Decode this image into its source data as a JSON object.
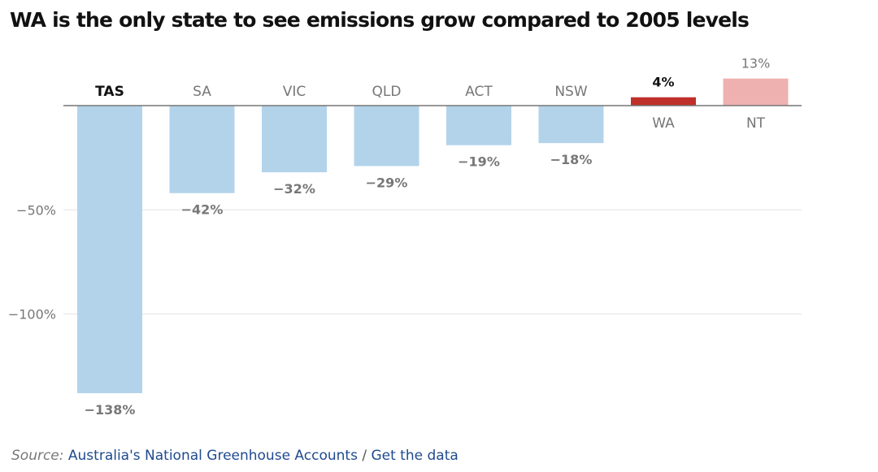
{
  "title": "WA is the only state to see emissions grow compared to 2005 levels",
  "source": {
    "label": "Source:",
    "name": "Australia's National Greenhouse Accounts",
    "separator": "/",
    "data_link": "Get the data"
  },
  "colors": {
    "decrease": "#b3d3eb",
    "wa": "#c0302b",
    "nt": "#eeb1b0",
    "gridline": "#e3e3e3",
    "baseline": "#777777",
    "value_label": "#777777",
    "highlight_label": "#111111",
    "source_link": "#1f4a8f"
  },
  "chart_data": {
    "type": "bar",
    "title": "WA is the only state to see emissions grow compared to 2005 levels",
    "categories": [
      "TAS",
      "SA",
      "VIC",
      "QLD",
      "ACT",
      "NSW",
      "WA",
      "NT"
    ],
    "values": [
      -138,
      -42,
      -32,
      -29,
      -19,
      -18,
      4,
      13
    ],
    "value_labels": [
      "−138%",
      "−42%",
      "−32%",
      "−29%",
      "−19%",
      "−18%",
      "4%",
      "13%"
    ],
    "highlighted": [
      "TAS",
      "WA"
    ],
    "y_ticks": [
      -50,
      -100
    ],
    "y_tick_labels": [
      "−50%",
      "−100%"
    ],
    "ylim": [
      -145,
      15
    ],
    "grid": true,
    "legend": "none",
    "xlabel": "",
    "ylabel": ""
  }
}
